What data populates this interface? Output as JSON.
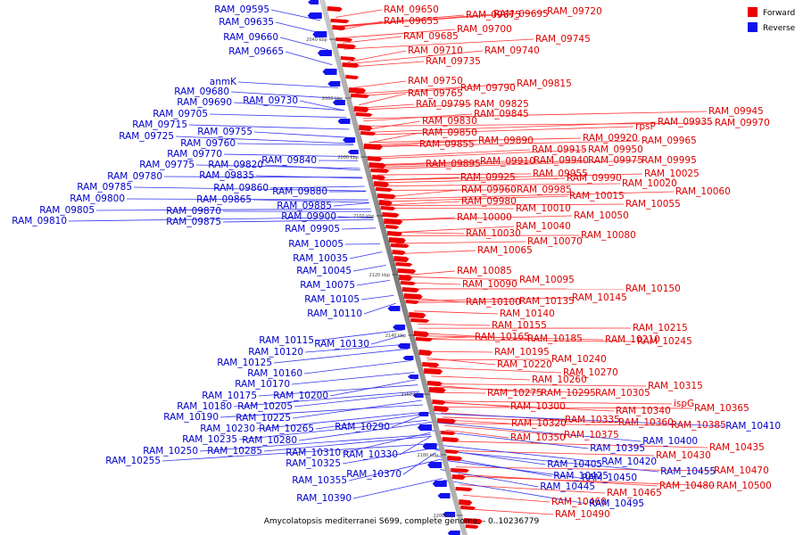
{
  "caption": "Amycolatopsis mediterranei S699, complete genome. - 0..10236779",
  "legend": {
    "forward": {
      "label": "Forward",
      "color": "#ee0000"
    },
    "reverse": {
      "label": "Reverse",
      "color": "#1111ee"
    }
  },
  "colors": {
    "backbone": "#999999",
    "forward_line": "#ff3333",
    "reverse_line": "#3333ee"
  },
  "ticks": [
    "2040 kbp",
    "2060 kbp",
    "2080 kbp",
    "2100 kbp",
    "2120 kbp",
    "2140 kbp",
    "2160 kbp",
    "2180 kbp",
    "2200 kbp"
  ],
  "forward_labels": [
    "RAM_09650",
    "RAM_09655",
    "RAM_09675",
    "RAM_09695",
    "RAM_09720",
    "RAM_09685",
    "RAM_09700",
    "RAM_09745",
    "RAM_09710",
    "RAM_09740",
    "RAM_09735",
    "RAM_09750",
    "RAM_09790",
    "RAM_09815",
    "RAM_09765",
    "RAM_09795",
    "RAM_09825",
    "RAM_09845",
    "RAM_09830",
    "RAM_09850",
    "RAM_09855",
    "RAM_09890",
    "RAM_09945",
    "rpsP",
    "RAM_09935",
    "RAM_09970",
    "RAM_09920",
    "RAM_09965",
    "RAM_09915",
    "RAM_09950",
    "RAM_09895",
    "RAM_09910",
    "RAM_09940",
    "RAM_09975",
    "RAM_09995",
    "RAM_09955",
    "RAM_09925",
    "RAM_09990",
    "RAM_10025",
    "RAM_09960",
    "RAM_09985",
    "RAM_10020",
    "RAM_09980",
    "RAM_10015",
    "RAM_10060",
    "RAM_10010",
    "RAM_10055",
    "RAM_10000",
    "RAM_10050",
    "RAM_10040",
    "RAM_10030",
    "RAM_10080",
    "RAM_10070",
    "RAM_10065",
    "RAM_10085",
    "RAM_10095",
    "RAM_10090",
    "RAM_10150",
    "RAM_10135",
    "RAM_10145",
    "RAM_10100",
    "RAM_10140",
    "RAM_10155",
    "RAM_10215",
    "RAM_10165",
    "RAM_10185",
    "RAM_10210",
    "RAM_10245",
    "RAM_10195",
    "RAM_10240",
    "RAM_10220",
    "RAM_10270",
    "RAM_10260",
    "RAM_10315",
    "RAM_10275",
    "RAM_10295",
    "RAM_10305",
    "RAM_10300",
    "ispG",
    "RAM_10365",
    "RAM_10340",
    "RAM_10335",
    "RAM_10360",
    "RAM_10320",
    "RAM_10385",
    "RAM_10375",
    "RAM_10350",
    "RAM_10435",
    "RAM_10430",
    "RAM_10470",
    "RAM_10480",
    "RAM_10500",
    "RAM_10465",
    "RAM_10460",
    "RAM_10490"
  ],
  "reverse_labels": [
    "RAM_09595",
    "RAM_09635",
    "RAM_09660",
    "RAM_09665",
    "anmK",
    "RAM_09680",
    "RAM_09690",
    "RAM_09730",
    "RAM_09705",
    "RAM_09715",
    "RAM_09755",
    "RAM_09725",
    "RAM_09760",
    "RAM_09770",
    "RAM_09775",
    "RAM_09820",
    "RAM_09840",
    "RAM_09780",
    "RAM_09835",
    "RAM_09785",
    "RAM_09860",
    "RAM_09880",
    "RAM_09800",
    "RAM_09865",
    "RAM_09885",
    "RAM_09805",
    "RAM_09870",
    "RAM_09900",
    "RAM_09810",
    "RAM_09875",
    "RAM_09905",
    "RAM_10005",
    "RAM_10035",
    "RAM_10045",
    "RAM_10075",
    "RAM_10105",
    "RAM_10110",
    "RAM_10115",
    "RAM_10130",
    "RAM_10120",
    "RAM_10125",
    "RAM_10160",
    "RAM_10170",
    "RAM_10175",
    "RAM_10200",
    "RAM_10180",
    "RAM_10205",
    "RAM_10190",
    "RAM_10225",
    "RAM_10230",
    "RAM_10265",
    "RAM_10290",
    "RAM_10235",
    "RAM_10280",
    "RAM_10250",
    "RAM_10285",
    "RAM_10310",
    "RAM_10330",
    "RAM_10255",
    "RAM_10325",
    "RAM_10370",
    "RAM_10355",
    "RAM_10390",
    "RAM_10410",
    "RAM_10400",
    "RAM_10395",
    "RAM_10420",
    "RAM_10405",
    "RAM_10455",
    "RAM_10425",
    "RAM_10450",
    "RAM_10445",
    "RAM_10495"
  ]
}
